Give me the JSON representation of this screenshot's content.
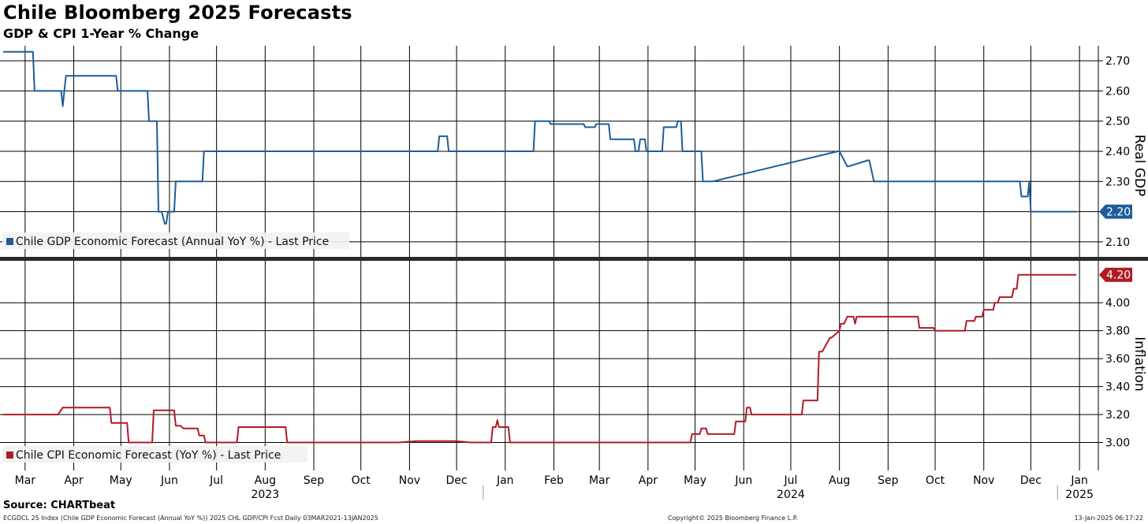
{
  "header": {
    "title": "Chile Bloomberg 2025 Forecasts",
    "subtitle": "GDP & CPI 1-Year % Change"
  },
  "footer": {
    "source": "Source: CHARTbeat",
    "left_note": "ECGDCL 25 Index (Chile GDP Economic Forecast (Annual YoY %)) 2025 CHL GDP/CPI Fcst  Daily 03MAR2021-13JAN2025",
    "copyright": "Copyright© 2025 Bloomberg Finance L.P.",
    "timestamp": "13-Jan-2025 06:17:22"
  },
  "colors": {
    "gdp": "#1f5c99",
    "cpi": "#b01c26",
    "grid": "#000000"
  },
  "chart_data": [
    {
      "type": "line",
      "panel": "top",
      "ylabel": "Real GDP",
      "ylim": [
        2.05,
        2.75
      ],
      "yticks": [
        "2.70",
        "2.60",
        "2.50",
        "2.40",
        "2.30",
        "2.20",
        "2.10"
      ],
      "legend": "Chile GDP Economic Forecast (Annual YoY %) - Last Price",
      "last_value_label": "2.20",
      "series": [
        {
          "name": "Chile GDP Economic Forecast (Annual YoY %) - Last Price",
          "x": [
            "2023-03-01",
            "2023-03-20",
            "2023-03-21",
            "2023-04-07",
            "2023-04-08",
            "2023-04-09",
            "2023-04-10",
            "2023-05-12",
            "2023-05-13",
            "2023-06-01",
            "2023-06-02",
            "2023-06-07",
            "2023-06-08",
            "2023-06-10",
            "2023-06-12",
            "2023-06-13",
            "2023-06-14",
            "2023-06-18",
            "2023-06-19",
            "2023-07-06",
            "2023-07-07",
            "2023-07-23",
            "2023-07-24",
            "2023-12-03",
            "2023-12-04",
            "2023-12-09",
            "2023-12-10",
            "2024-02-02",
            "2024-02-03",
            "2024-02-12",
            "2024-02-13",
            "2024-03-01",
            "2024-03-05",
            "2024-03-06",
            "2024-03-12",
            "2024-03-13",
            "2024-03-21",
            "2024-03-22",
            "2024-04-06",
            "2024-04-07",
            "2024-04-09",
            "2024-04-10",
            "2024-04-13",
            "2024-04-14",
            "2024-04-24",
            "2024-04-25",
            "2024-05-03",
            "2024-05-04",
            "2024-05-06",
            "2024-05-07",
            "2024-05-19",
            "2024-05-20",
            "2024-05-25",
            "2024-05-26",
            "2024-08-14",
            "2024-08-15",
            "2024-08-20",
            "2024-08-21",
            "2024-09-02",
            "2024-09-03",
            "2024-09-06",
            "2024-09-07",
            "2024-12-08",
            "2024-12-09",
            "2024-12-13",
            "2024-12-14",
            "2024-12-15",
            "2025-01-13"
          ],
          "y": [
            2.73,
            2.73,
            2.6,
            2.6,
            2.55,
            2.6,
            2.65,
            2.65,
            2.6,
            2.6,
            2.5,
            2.5,
            2.2,
            2.2,
            2.16,
            2.16,
            2.2,
            2.2,
            2.3,
            2.3,
            2.4,
            2.4,
            2.4,
            2.4,
            2.45,
            2.45,
            2.4,
            2.4,
            2.5,
            2.5,
            2.49,
            2.49,
            2.49,
            2.48,
            2.48,
            2.49,
            2.49,
            2.44,
            2.44,
            2.4,
            2.4,
            2.44,
            2.44,
            2.4,
            2.4,
            2.48,
            2.48,
            2.5,
            2.5,
            2.4,
            2.4,
            2.3,
            2.3,
            2.3,
            2.4,
            2.4,
            2.35,
            2.35,
            2.37,
            2.37,
            2.3,
            2.3,
            2.3,
            2.25,
            2.25,
            2.3,
            2.2,
            2.2
          ]
        }
      ]
    },
    {
      "type": "line",
      "panel": "bottom",
      "ylabel": "Inflation",
      "ylim": [
        2.8,
        4.3
      ],
      "yticks": [
        "4.00",
        "3.80",
        "3.60",
        "3.40",
        "3.20",
        "3.00"
      ],
      "legend": "Chile CPI Economic Forecast (YoY %) - Last Price",
      "last_value_label": "4.20",
      "series": [
        {
          "name": "Chile CPI Economic Forecast (YoY %) - Last Price",
          "x": [
            "2023-03-01",
            "2023-04-05",
            "2023-04-08",
            "2023-04-10",
            "2023-05-08",
            "2023-05-09",
            "2023-05-19",
            "2023-05-20",
            "2023-06-04",
            "2023-06-05",
            "2023-06-18",
            "2023-06-19",
            "2023-06-22",
            "2023-06-24",
            "2023-07-03",
            "2023-07-04",
            "2023-07-07",
            "2023-07-08",
            "2023-07-28",
            "2023-07-29",
            "2023-08-28",
            "2023-08-29",
            "2023-11-08",
            "2023-11-20",
            "2023-12-14",
            "2023-12-24",
            "2023-12-25",
            "2024-01-06",
            "2024-01-07",
            "2024-01-09",
            "2024-01-10",
            "2024-01-11",
            "2024-01-17",
            "2024-01-18",
            "2024-05-12",
            "2024-05-13",
            "2024-05-18",
            "2024-05-19",
            "2024-05-22",
            "2024-05-23",
            "2024-06-09",
            "2024-06-10",
            "2024-06-16",
            "2024-06-17",
            "2024-06-19",
            "2024-06-20",
            "2024-06-23",
            "2024-07-22",
            "2024-07-23",
            "2024-08-01",
            "2024-08-02",
            "2024-08-04",
            "2024-08-09",
            "2024-08-10",
            "2024-08-15",
            "2024-08-16",
            "2024-08-18",
            "2024-08-20",
            "2024-08-24",
            "2024-08-25",
            "2024-08-26",
            "2024-09-02",
            "2024-09-04",
            "2024-09-07",
            "2024-10-04",
            "2024-10-05",
            "2024-10-14",
            "2024-10-15",
            "2024-11-03",
            "2024-11-04",
            "2024-11-09",
            "2024-11-10",
            "2024-11-14",
            "2024-11-15",
            "2024-11-21",
            "2024-11-22",
            "2024-11-24",
            "2024-11-25",
            "2024-12-03",
            "2024-12-04",
            "2024-12-06",
            "2024-12-07",
            "2024-12-13",
            "2025-01-13"
          ],
          "y": [
            3.2,
            3.2,
            3.25,
            3.25,
            3.25,
            3.14,
            3.14,
            3.0,
            3.0,
            3.23,
            3.23,
            3.12,
            3.12,
            3.1,
            3.1,
            3.05,
            3.05,
            3.0,
            3.0,
            3.11,
            3.11,
            3.0,
            3.0,
            3.01,
            3.01,
            3.0,
            3.0,
            3.0,
            3.11,
            3.11,
            3.16,
            3.11,
            3.11,
            3.0,
            3.0,
            3.06,
            3.06,
            3.1,
            3.1,
            3.06,
            3.06,
            3.15,
            3.15,
            3.25,
            3.25,
            3.2,
            3.2,
            3.2,
            3.3,
            3.3,
            3.65,
            3.65,
            3.75,
            3.75,
            3.8,
            3.85,
            3.85,
            3.9,
            3.9,
            3.85,
            3.9,
            3.9,
            3.9,
            3.9,
            3.9,
            3.82,
            3.82,
            3.8,
            3.8,
            3.87,
            3.87,
            3.9,
            3.9,
            3.95,
            3.95,
            4.0,
            4.0,
            4.04,
            4.04,
            4.1,
            4.1,
            4.2,
            4.2,
            4.2
          ]
        }
      ]
    }
  ],
  "x_axis": {
    "months": [
      {
        "label": "Mar",
        "date": "2023-03-15"
      },
      {
        "label": "Apr",
        "date": "2023-04-15"
      },
      {
        "label": "May",
        "date": "2023-05-15"
      },
      {
        "label": "Jun",
        "date": "2023-06-15"
      },
      {
        "label": "Jul",
        "date": "2023-07-15"
      },
      {
        "label": "Aug",
        "date": "2023-08-15"
      },
      {
        "label": "Sep",
        "date": "2023-09-15"
      },
      {
        "label": "Oct",
        "date": "2023-10-15"
      },
      {
        "label": "Nov",
        "date": "2023-11-15"
      },
      {
        "label": "Dec",
        "date": "2023-12-15"
      },
      {
        "label": "Jan",
        "date": "2024-01-15"
      },
      {
        "label": "Feb",
        "date": "2024-02-15"
      },
      {
        "label": "Mar",
        "date": "2024-03-15"
      },
      {
        "label": "Apr",
        "date": "2024-04-15"
      },
      {
        "label": "May",
        "date": "2024-05-15"
      },
      {
        "label": "Jun",
        "date": "2024-06-15"
      },
      {
        "label": "Jul",
        "date": "2024-07-15"
      },
      {
        "label": "Aug",
        "date": "2024-08-15"
      },
      {
        "label": "Sep",
        "date": "2024-09-15"
      },
      {
        "label": "Oct",
        "date": "2024-10-15"
      },
      {
        "label": "Nov",
        "date": "2024-11-15"
      },
      {
        "label": "Dec",
        "date": "2024-12-15"
      },
      {
        "label": "Jan",
        "date": "2025-01-15"
      }
    ],
    "gridlines": [
      "2023-03-15",
      "2023-04-15",
      "2023-05-15",
      "2023-06-15",
      "2023-07-15",
      "2023-08-15",
      "2023-09-15",
      "2023-10-15",
      "2023-11-15",
      "2023-12-15",
      "2024-01-15",
      "2024-02-15",
      "2024-03-15",
      "2024-04-15",
      "2024-05-15",
      "2024-06-15",
      "2024-07-15",
      "2024-08-15",
      "2024-09-15",
      "2024-10-15",
      "2024-11-15",
      "2024-12-15",
      "2025-01-15"
    ],
    "years": [
      {
        "label": "2023",
        "date": "2023-08-15"
      },
      {
        "label": "2024",
        "date": "2024-07-15"
      },
      {
        "label": "2025",
        "date": "2025-01-15"
      }
    ],
    "year_separators": [
      "2024-01-01",
      "2025-01-01"
    ]
  }
}
